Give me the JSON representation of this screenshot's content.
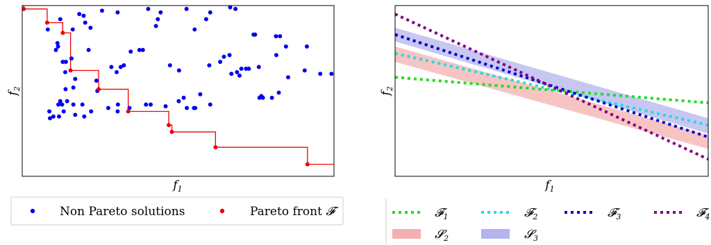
{
  "chart_data": [
    {
      "type": "scatter",
      "xlabel": "f1",
      "ylabel": "f2",
      "grid": false,
      "legend_position": "below",
      "legend": [
        "Non Pareto solutions",
        "Pareto front F"
      ],
      "colors": {
        "non_pareto": "#0000ee",
        "pareto": "#ee0000",
        "front_line": "#ee0000"
      },
      "xlim": [
        0,
        100
      ],
      "ylim": [
        0,
        100
      ],
      "series": [
        {
          "name": "Non Pareto solutions",
          "points": [
            [
              12.2,
              92
            ],
            [
              18.3,
              95
            ],
            [
              19.7,
              94
            ],
            [
              20.2,
              90
            ],
            [
              21.9,
              87
            ],
            [
              16.2,
              86
            ],
            [
              25.6,
              97
            ],
            [
              30.6,
              96
            ],
            [
              40.4,
              98
            ],
            [
              43.5,
              92
            ],
            [
              44.4,
              96
            ],
            [
              42.9,
              88
            ],
            [
              52.7,
              98
            ],
            [
              59.0,
              92
            ],
            [
              60.3,
              96
            ],
            [
              55.3,
              86
            ],
            [
              66.7,
              99
            ],
            [
              68.4,
              98
            ],
            [
              74.2,
              83
            ],
            [
              74.7,
              83
            ],
            [
              81.4,
              82
            ],
            [
              82.7,
              82
            ],
            [
              21.3,
              74
            ],
            [
              34.8,
              73
            ],
            [
              37.6,
              74
            ],
            [
              38.7,
              74
            ],
            [
              28.6,
              64
            ],
            [
              23.8,
              56
            ],
            [
              31.6,
              64
            ],
            [
              32.6,
              65
            ],
            [
              30.3,
              61
            ],
            [
              47.4,
              65
            ],
            [
              50.3,
              62
            ],
            [
              60.0,
              65
            ],
            [
              63.5,
              67
            ],
            [
              64.7,
              70
            ],
            [
              66.5,
              71
            ],
            [
              67.1,
              60
            ],
            [
              68.9,
              61
            ],
            [
              69.7,
              59
            ],
            [
              71.8,
              63
            ],
            [
              72.7,
              63
            ],
            [
              75.9,
              64
            ],
            [
              70.3,
              63
            ],
            [
              81.5,
              71
            ],
            [
              84.6,
              76
            ],
            [
              91.3,
              76
            ],
            [
              90.6,
              62
            ],
            [
              95.6,
              60
            ],
            [
              99.2,
              60
            ],
            [
              85.3,
              58
            ],
            [
              82.3,
              49
            ],
            [
              80.1,
              46
            ],
            [
              76.1,
              46
            ],
            [
              76.7,
              47
            ],
            [
              77.2,
              46
            ],
            [
              51.8,
              46
            ],
            [
              50.2,
              44
            ],
            [
              46.0,
              41
            ],
            [
              41.2,
              42
            ],
            [
              57.1,
              48
            ],
            [
              60.3,
              42
            ],
            [
              55.1,
              40
            ],
            [
              39.7,
              42
            ],
            [
              30.7,
              42
            ],
            [
              27.6,
              40
            ],
            [
              22.1,
              38
            ],
            [
              19.9,
              35
            ],
            [
              17.0,
              36
            ],
            [
              16.4,
              42
            ],
            [
              16.4,
              52
            ],
            [
              24.1,
              50
            ],
            [
              13.9,
              51
            ],
            [
              14.4,
              44
            ],
            [
              12.8,
              42
            ],
            [
              11.6,
              42
            ],
            [
              11.8,
              35
            ],
            [
              10.0,
              35
            ],
            [
              8.9,
              34
            ],
            [
              8.7,
              38
            ],
            [
              52.8,
              40
            ],
            [
              55.5,
              40
            ],
            [
              34.4,
              40
            ],
            [
              30.6,
              38
            ],
            [
              13.3,
              38
            ],
            [
              12.2,
              44
            ],
            [
              14.0,
              67
            ],
            [
              11.3,
              78
            ],
            [
              13.0,
              67
            ],
            [
              15.8,
              69
            ],
            [
              17.0,
              57
            ],
            [
              8.2,
              86
            ],
            [
              10.8,
              74
            ],
            [
              11.5,
              76
            ],
            [
              13.8,
              61
            ],
            [
              19.3,
              42
            ]
          ]
        },
        {
          "name": "Pareto front F",
          "points": [
            [
              0.5,
              98
            ],
            [
              8.0,
              90
            ],
            [
              13.0,
              84
            ],
            [
              15.5,
              62
            ],
            [
              24.5,
              51
            ],
            [
              34.0,
              38
            ],
            [
              47.0,
              30
            ],
            [
              48.0,
              26
            ],
            [
              62.0,
              17
            ],
            [
              91.5,
              7
            ]
          ]
        }
      ]
    },
    {
      "type": "line",
      "xlabel": "f1",
      "ylabel": "f2",
      "grid": false,
      "legend_position": "below",
      "series": [
        {
          "name": "F1",
          "style": "dotted",
          "color": "#22dd22",
          "y_left": 58,
          "y_right": 43
        },
        {
          "name": "F2",
          "style": "dotted",
          "color": "#22dddd",
          "y_left": 72,
          "y_right": 30
        },
        {
          "name": "F3",
          "style": "dotted",
          "color": "#0000cc",
          "y_left": 83,
          "y_right": 23
        },
        {
          "name": "F4",
          "style": "dotted",
          "color": "#800080",
          "y_left": 95,
          "y_right": 10
        }
      ],
      "bands": [
        {
          "name": "S2",
          "color": "#f4b0b0",
          "y_left_low": 67,
          "y_left_high": 76,
          "y_right_low": 16,
          "y_right_high": 24
        },
        {
          "name": "S3",
          "color": "#b4b4ee",
          "y_left_low": 79,
          "y_left_high": 87,
          "y_right_low": 25,
          "y_right_high": 34
        }
      ]
    }
  ]
}
